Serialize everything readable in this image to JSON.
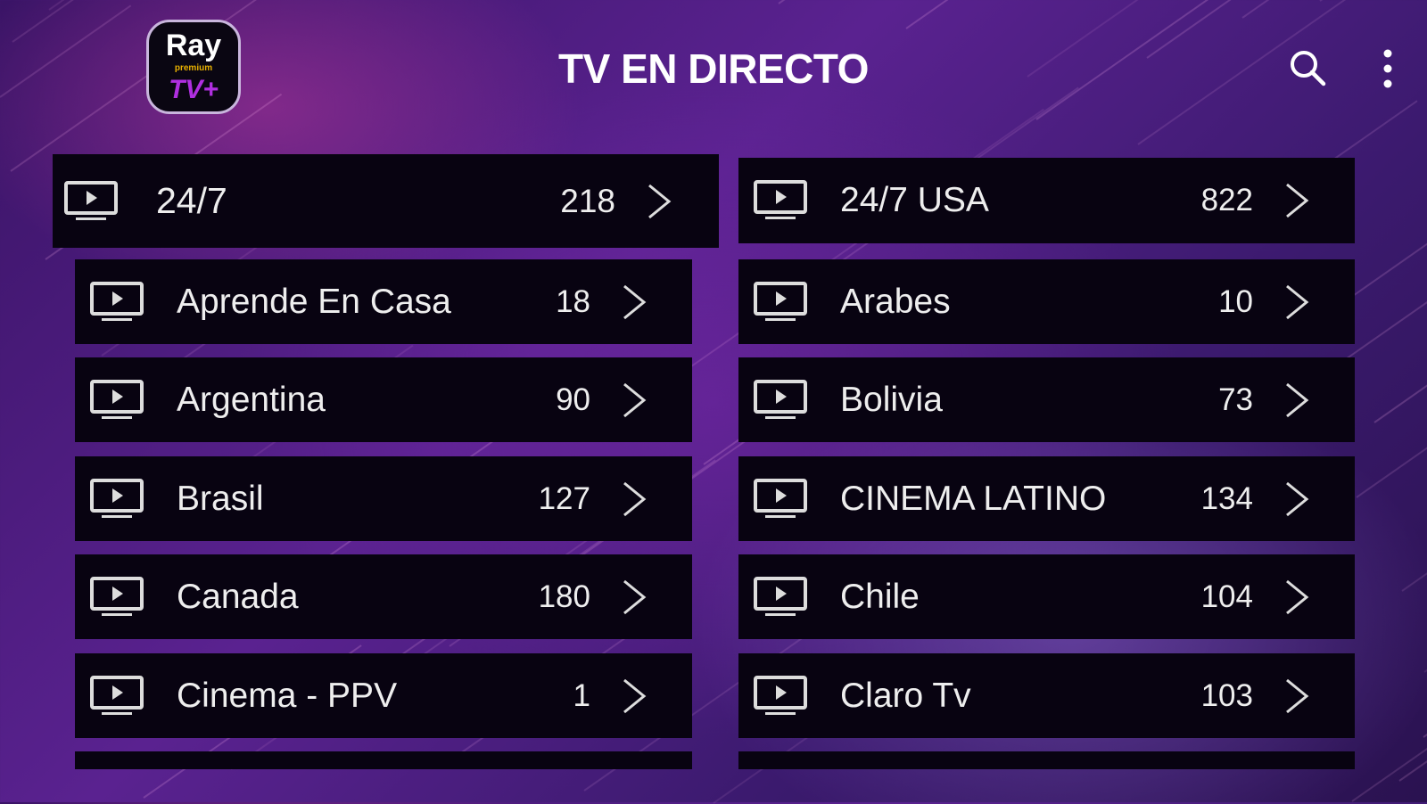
{
  "header": {
    "logo_text": "Ray premium TV+",
    "title": "TV EN DIRECTO",
    "search_icon": "search-icon",
    "menu_icon": "more-vertical-icon"
  },
  "categories": {
    "left": [
      {
        "name": "24/7",
        "count": "218",
        "focused": true
      },
      {
        "name": "Aprende En Casa",
        "count": "18"
      },
      {
        "name": "Argentina",
        "count": "90"
      },
      {
        "name": "Brasil",
        "count": "127"
      },
      {
        "name": "Canada",
        "count": "180"
      },
      {
        "name": "Cinema - PPV",
        "count": "1"
      }
    ],
    "right": [
      {
        "name": "24/7 USA",
        "count": "822"
      },
      {
        "name": "Arabes",
        "count": "10"
      },
      {
        "name": "Bolivia",
        "count": "73"
      },
      {
        "name": "CINEMA LATINO",
        "count": "134"
      },
      {
        "name": "Chile",
        "count": "104"
      },
      {
        "name": "Claro Tv",
        "count": "103"
      }
    ]
  },
  "colors": {
    "card_bg": "#080311",
    "text": "#eeeeee",
    "accent_purple": "#5a2290"
  }
}
